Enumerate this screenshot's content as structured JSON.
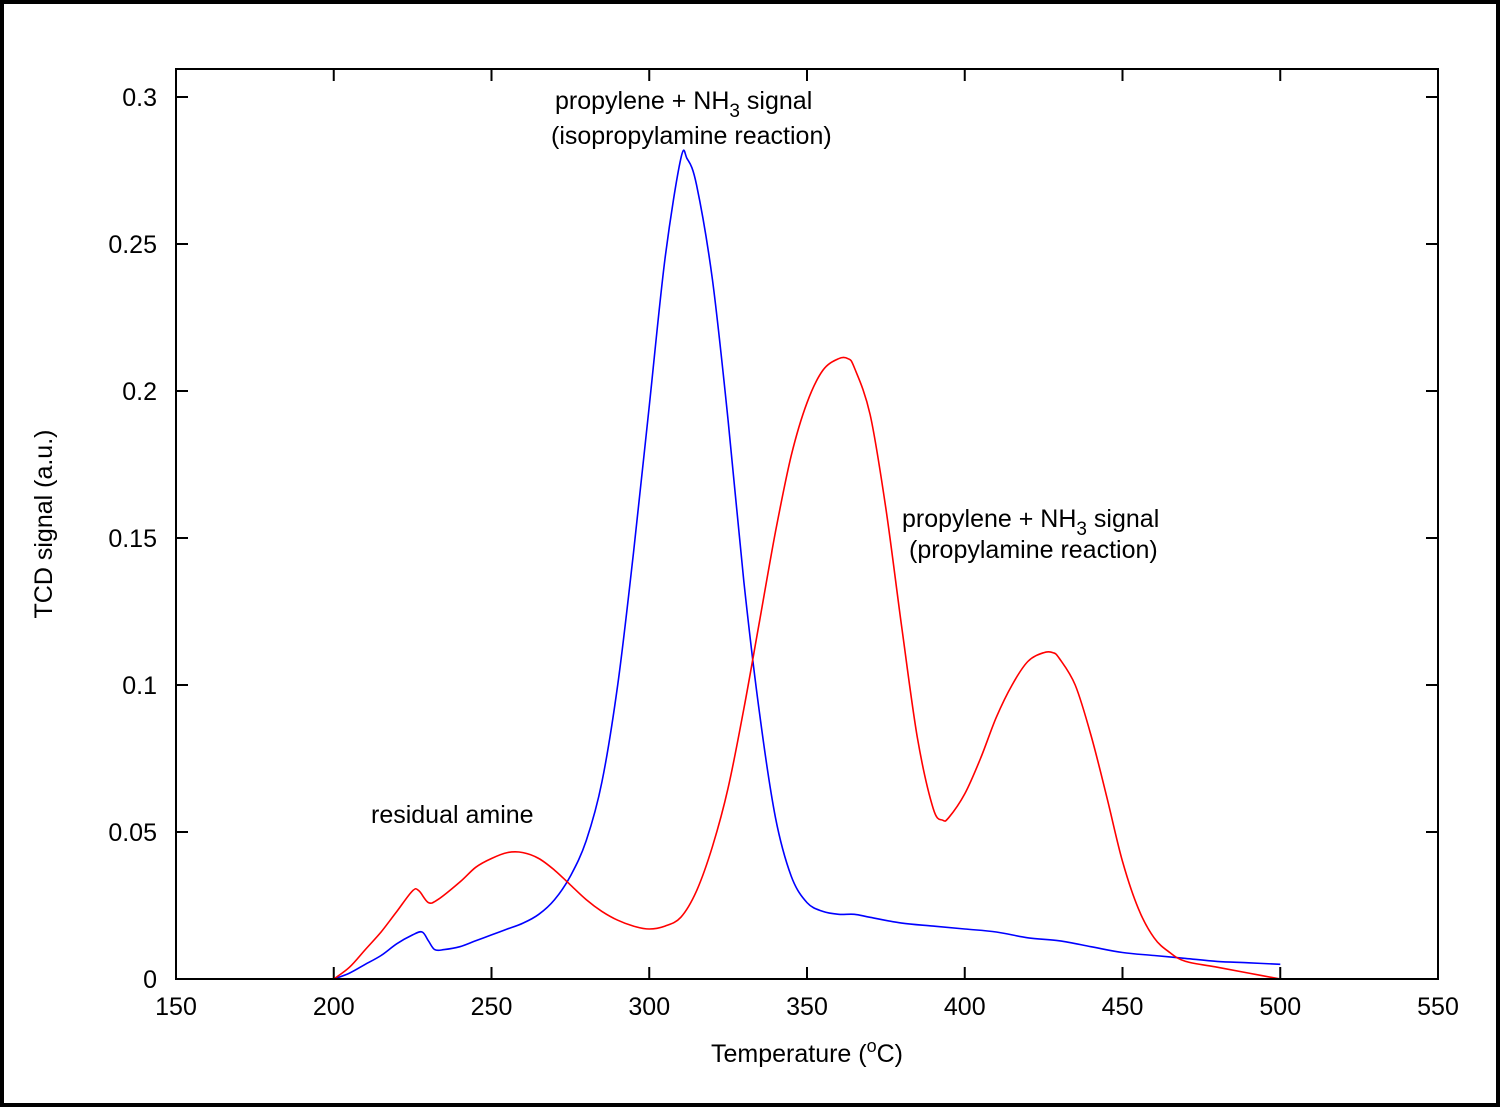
{
  "chart_data": {
    "type": "line",
    "xlabel": {
      "main": "Temperature (",
      "sup": "o",
      "unit": "C)"
    },
    "ylabel": "TCD signal (a.u.)",
    "xlim": [
      150,
      550
    ],
    "ylim": [
      0,
      0.3
    ],
    "xticks": [
      150,
      200,
      250,
      300,
      350,
      400,
      450,
      500,
      550
    ],
    "yticks": [
      0,
      0.05,
      0.1,
      0.15,
      0.2,
      0.25,
      0.3
    ],
    "xtick_labels": [
      "150",
      "200",
      "250",
      "300",
      "350",
      "400",
      "450",
      "500",
      "550"
    ],
    "ytick_labels": [
      "0",
      "0.05",
      "0.1",
      "0.15",
      "0.2",
      "0.25",
      "0.3"
    ],
    "grid": false,
    "series": [
      {
        "color": "#0000ff",
        "points": [
          [
            200,
            0.0
          ],
          [
            205,
            0.002
          ],
          [
            210,
            0.005
          ],
          [
            215,
            0.008
          ],
          [
            220,
            0.012
          ],
          [
            225,
            0.015
          ],
          [
            228,
            0.016
          ],
          [
            230,
            0.013
          ],
          [
            232,
            0.01
          ],
          [
            235,
            0.01
          ],
          [
            240,
            0.011
          ],
          [
            245,
            0.013
          ],
          [
            250,
            0.015
          ],
          [
            255,
            0.017
          ],
          [
            260,
            0.019
          ],
          [
            265,
            0.022
          ],
          [
            270,
            0.027
          ],
          [
            275,
            0.035
          ],
          [
            280,
            0.047
          ],
          [
            285,
            0.067
          ],
          [
            290,
            0.1
          ],
          [
            295,
            0.145
          ],
          [
            300,
            0.195
          ],
          [
            305,
            0.245
          ],
          [
            310,
            0.279
          ],
          [
            312,
            0.279
          ],
          [
            315,
            0.27
          ],
          [
            320,
            0.238
          ],
          [
            325,
            0.19
          ],
          [
            330,
            0.135
          ],
          [
            335,
            0.09
          ],
          [
            340,
            0.055
          ],
          [
            345,
            0.035
          ],
          [
            350,
            0.026
          ],
          [
            355,
            0.023
          ],
          [
            360,
            0.022
          ],
          [
            365,
            0.022
          ],
          [
            370,
            0.021
          ],
          [
            380,
            0.019
          ],
          [
            390,
            0.018
          ],
          [
            400,
            0.017
          ],
          [
            410,
            0.016
          ],
          [
            420,
            0.014
          ],
          [
            430,
            0.013
          ],
          [
            440,
            0.011
          ],
          [
            450,
            0.009
          ],
          [
            460,
            0.008
          ],
          [
            470,
            0.007
          ],
          [
            480,
            0.006
          ],
          [
            490,
            0.0055
          ],
          [
            500,
            0.005
          ]
        ]
      },
      {
        "color": "#ff0000",
        "points": [
          [
            200,
            0.0
          ],
          [
            205,
            0.004
          ],
          [
            210,
            0.01
          ],
          [
            215,
            0.016
          ],
          [
            220,
            0.023
          ],
          [
            225,
            0.03
          ],
          [
            227,
            0.03
          ],
          [
            230,
            0.026
          ],
          [
            233,
            0.027
          ],
          [
            240,
            0.033
          ],
          [
            245,
            0.038
          ],
          [
            250,
            0.041
          ],
          [
            255,
            0.043
          ],
          [
            260,
            0.043
          ],
          [
            265,
            0.041
          ],
          [
            270,
            0.037
          ],
          [
            275,
            0.032
          ],
          [
            280,
            0.027
          ],
          [
            285,
            0.023
          ],
          [
            290,
            0.02
          ],
          [
            295,
            0.018
          ],
          [
            300,
            0.017
          ],
          [
            305,
            0.018
          ],
          [
            310,
            0.021
          ],
          [
            315,
            0.03
          ],
          [
            320,
            0.045
          ],
          [
            325,
            0.065
          ],
          [
            330,
            0.092
          ],
          [
            335,
            0.122
          ],
          [
            340,
            0.152
          ],
          [
            345,
            0.178
          ],
          [
            350,
            0.196
          ],
          [
            355,
            0.207
          ],
          [
            360,
            0.211
          ],
          [
            363,
            0.211
          ],
          [
            365,
            0.208
          ],
          [
            370,
            0.192
          ],
          [
            375,
            0.16
          ],
          [
            380,
            0.12
          ],
          [
            385,
            0.082
          ],
          [
            390,
            0.058
          ],
          [
            393,
            0.054
          ],
          [
            395,
            0.055
          ],
          [
            400,
            0.063
          ],
          [
            405,
            0.075
          ],
          [
            410,
            0.089
          ],
          [
            415,
            0.1
          ],
          [
            420,
            0.108
          ],
          [
            425,
            0.111
          ],
          [
            428,
            0.111
          ],
          [
            430,
            0.109
          ],
          [
            435,
            0.1
          ],
          [
            440,
            0.083
          ],
          [
            445,
            0.062
          ],
          [
            450,
            0.04
          ],
          [
            455,
            0.024
          ],
          [
            460,
            0.014
          ],
          [
            465,
            0.009
          ],
          [
            470,
            0.006
          ],
          [
            480,
            0.004
          ],
          [
            490,
            0.002
          ],
          [
            500,
            0.0
          ]
        ]
      }
    ],
    "annotations": [
      {
        "text": "residual amine"
      },
      {
        "line1_pre": "propylene + NH",
        "line1_sub": "3",
        "line1_post": " signal",
        "line2": "(isopropylamine reaction)"
      },
      {
        "line1_pre": "propylene + NH",
        "line1_sub": "3",
        "line1_post": " signal",
        "line2": "(propylamine reaction)"
      }
    ]
  }
}
